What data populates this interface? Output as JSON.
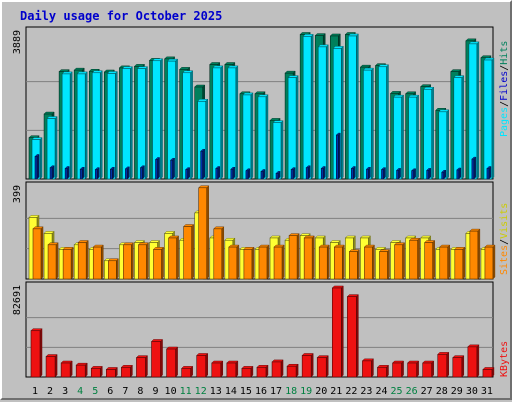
{
  "title": "Daily usage for October 2025",
  "colors": {
    "hits": "#00805c",
    "files": "#00e6ff",
    "pages": "#0033aa",
    "visits": "#ffff33",
    "sites": "#ff8800",
    "kbytes": "#ee1111",
    "weekend_label": "#008040",
    "weekday_label": "#000000"
  },
  "chart_data": [
    {
      "type": "bar",
      "panel": "hits-files-pages",
      "ymax_label": "3889",
      "ylim": [
        0,
        3889
      ],
      "legend": {
        "pages": "Pages",
        "files": "Files",
        "hits": "Hits",
        "sep": "/"
      },
      "categories": [
        "1",
        "2",
        "3",
        "4",
        "5",
        "6",
        "7",
        "8",
        "9",
        "10",
        "11",
        "12",
        "13",
        "14",
        "15",
        "16",
        "17",
        "18",
        "19",
        "20",
        "21",
        "22",
        "23",
        "24",
        "25",
        "26",
        "27",
        "28",
        "29",
        "30",
        "31"
      ],
      "weekend": [
        false,
        false,
        false,
        true,
        true,
        false,
        false,
        false,
        false,
        false,
        true,
        true,
        false,
        false,
        false,
        false,
        false,
        true,
        true,
        false,
        false,
        false,
        false,
        false,
        true,
        true,
        false,
        false,
        false,
        false,
        false
      ],
      "series": [
        {
          "name": "Hits",
          "values": [
            1100,
            1730,
            2860,
            2900,
            2870,
            2850,
            2960,
            3000,
            3160,
            3200,
            2920,
            2450,
            3050,
            3050,
            2270,
            2270,
            1560,
            2820,
            3850,
            3820,
            3810,
            3850,
            2980,
            3020,
            2280,
            2270,
            2460,
            1830,
            2860,
            3680,
            3230
          ]
        },
        {
          "name": "Files",
          "values": [
            1050,
            1610,
            2800,
            2800,
            2830,
            2810,
            2940,
            2940,
            3150,
            3140,
            2830,
            2070,
            2960,
            2960,
            2240,
            2190,
            1500,
            2700,
            3800,
            3520,
            3480,
            3810,
            2900,
            2990,
            2180,
            2180,
            2390,
            1790,
            2700,
            3600,
            3170
          ]
        },
        {
          "name": "Pages",
          "values": [
            600,
            300,
            280,
            260,
            250,
            260,
            270,
            300,
            520,
            500,
            250,
            740,
            280,
            260,
            220,
            200,
            150,
            250,
            300,
            280,
            1170,
            280,
            260,
            250,
            230,
            220,
            230,
            180,
            240,
            530,
            280
          ]
        }
      ]
    },
    {
      "type": "bar",
      "panel": "visits-sites",
      "ymax_label": "399",
      "ylim": [
        0,
        399
      ],
      "legend": {
        "sites": "Sites",
        "visits": "Visits",
        "sep": "/"
      },
      "categories": [
        "1",
        "2",
        "3",
        "4",
        "5",
        "6",
        "7",
        "8",
        "9",
        "10",
        "11",
        "12",
        "13",
        "14",
        "15",
        "16",
        "17",
        "18",
        "19",
        "20",
        "21",
        "22",
        "23",
        "24",
        "25",
        "26",
        "27",
        "28",
        "29",
        "30",
        "31"
      ],
      "series": [
        {
          "name": "Visits",
          "values": [
            270,
            200,
            130,
            150,
            130,
            80,
            150,
            160,
            160,
            200,
            170,
            290,
            180,
            170,
            130,
            130,
            180,
            170,
            190,
            180,
            160,
            180,
            180,
            130,
            160,
            180,
            180,
            130,
            130,
            200,
            130
          ]
        },
        {
          "name": "Sites",
          "values": [
            220,
            150,
            130,
            160,
            140,
            80,
            150,
            150,
            130,
            180,
            230,
            400,
            220,
            140,
            130,
            140,
            140,
            190,
            180,
            140,
            140,
            120,
            140,
            120,
            150,
            170,
            160,
            140,
            130,
            210,
            140
          ]
        }
      ]
    },
    {
      "type": "bar",
      "panel": "kbytes",
      "ymax_label": "82691",
      "ylim": [
        0,
        82691
      ],
      "legend": {
        "kbytes": "KBytes"
      },
      "categories": [
        "1",
        "2",
        "3",
        "4",
        "5",
        "6",
        "7",
        "8",
        "9",
        "10",
        "11",
        "12",
        "13",
        "14",
        "15",
        "16",
        "17",
        "18",
        "19",
        "20",
        "21",
        "22",
        "23",
        "24",
        "25",
        "26",
        "27",
        "28",
        "29",
        "30",
        "31"
      ],
      "series": [
        {
          "name": "KBytes",
          "values": [
            43000,
            19000,
            13000,
            11000,
            8000,
            7000,
            9000,
            18000,
            33000,
            26000,
            8000,
            20000,
            13000,
            13000,
            8000,
            9000,
            14000,
            10000,
            20000,
            18000,
            82700,
            74700,
            15000,
            9000,
            13000,
            13000,
            13000,
            21000,
            18000,
            28000,
            7000
          ]
        }
      ]
    }
  ]
}
